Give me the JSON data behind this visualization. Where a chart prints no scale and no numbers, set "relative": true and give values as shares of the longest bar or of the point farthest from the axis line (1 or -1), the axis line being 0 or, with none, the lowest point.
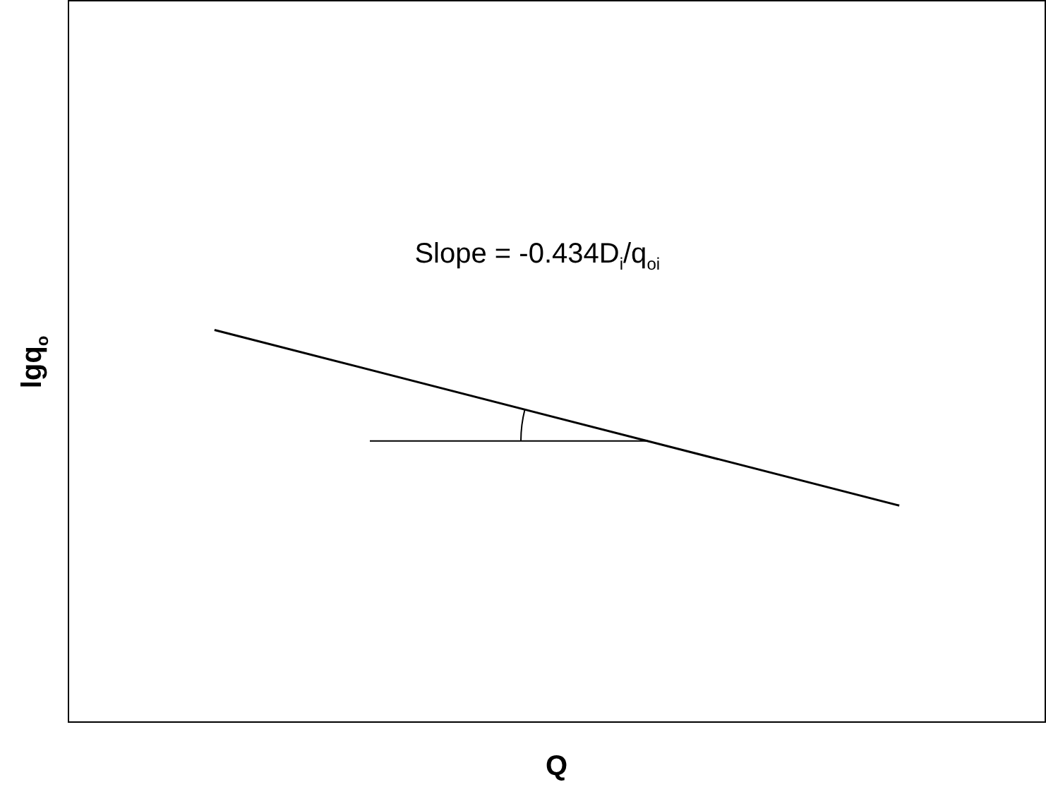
{
  "chart_data": {
    "type": "line",
    "relative": true,
    "xlabel": "Q",
    "ylabel": "lgq$_{o}$",
    "annotations": [
      "Slope = -0.434D$_{i}$/q$_{oi}$"
    ],
    "categories": [
      null,
      null,
      null,
      null,
      null,
      null,
      null,
      null,
      null,
      null
    ],
    "series": [
      {
        "color": "#000000",
        "values": [
          null,
          1,
          null,
          null,
          null,
          null,
          null,
          null,
          0.553,
          null
        ]
      }
    ],
    "marker": "none",
    "grid": false,
    "legend": false
  }
}
